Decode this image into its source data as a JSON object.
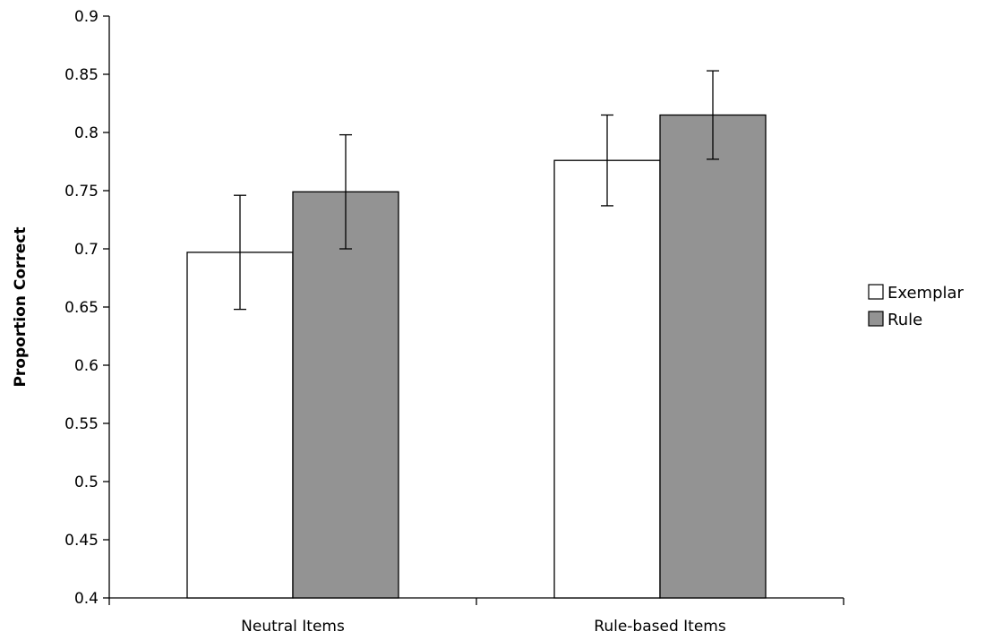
{
  "chart_data": {
    "type": "bar",
    "categories": [
      "Neutral Items",
      "Rule-based Items"
    ],
    "series": [
      {
        "name": "Exemplar",
        "values": [
          0.697,
          0.776
        ],
        "error": [
          0.049,
          0.039
        ],
        "color": "#ffffff"
      },
      {
        "name": "Rule",
        "values": [
          0.749,
          0.815
        ],
        "error": [
          0.049,
          0.038
        ],
        "color": "#939393"
      }
    ],
    "title": "",
    "xlabel": "",
    "ylabel": "Proportion Correct",
    "ylim": [
      0.4,
      0.9
    ],
    "yticks": [
      "0.4",
      "0.45",
      "0.5",
      "0.55",
      "0.6",
      "0.65",
      "0.7",
      "0.75",
      "0.8",
      "0.85",
      "0.9"
    ],
    "grid": false,
    "legend_position": "right"
  }
}
